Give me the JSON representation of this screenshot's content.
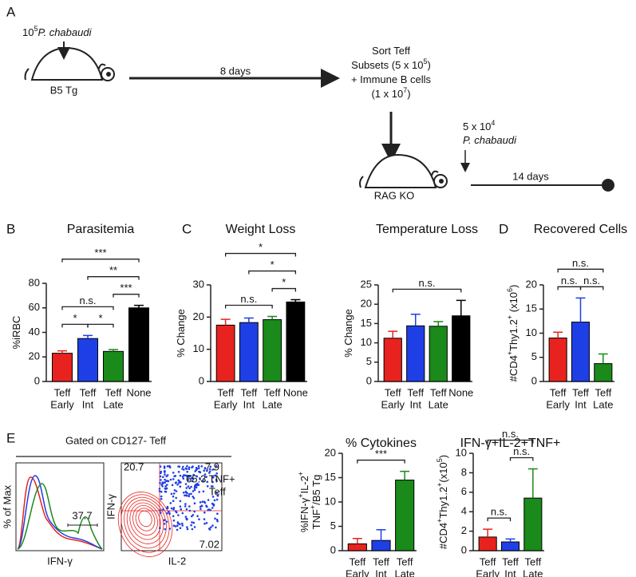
{
  "schematic": {
    "panel_label": "A",
    "dose": [
      "10",
      {
        "sup": "5"
      },
      {
        "em": "P. chabaudi"
      }
    ],
    "donor": "B5 Tg",
    "interval": "8 days",
    "sort": [
      [
        "Sort Teff"
      ],
      [
        "Subsets (5 x 10",
        {
          "sup": "5"
        },
        ")"
      ],
      [
        "+ Immune B cells"
      ],
      [
        "(1 x 10",
        {
          "sup": "7"
        },
        ")"
      ]
    ],
    "recipient": "RAG KO",
    "challenge": [
      [
        "5 x 10",
        {
          "sup": "4"
        }
      ],
      [
        {
          "em": "P. chabaudi"
        }
      ]
    ],
    "duration": "14 days"
  },
  "flow": {
    "panel_label": "E",
    "gate": "Gated on CD127- Teff",
    "hist_ylabel": "% of Max",
    "hist_xlabel": "IFN-γ",
    "hist_gate": "37.7",
    "dot_ylabel": "IFN-γ",
    "dot_xlabel": "IL-2",
    "quadrants": [
      "20.7",
      "7.9",
      "7.02"
    ],
    "tnf": [
      "65.3 TNF+",
      "Teff"
    ]
  },
  "chart_data": [
    {
      "type": "bar",
      "panel_label": "B",
      "title": "Parasitemia",
      "ylabel": [
        [
          "%iRBC"
        ]
      ],
      "categories": [
        [
          "Teff",
          "Early"
        ],
        [
          "Teff",
          "Int"
        ],
        [
          "Teff",
          "Late"
        ],
        [
          "None"
        ]
      ],
      "values": [
        23,
        35,
        24.5,
        60
      ],
      "errors": [
        2,
        2.5,
        1.5,
        2
      ],
      "colors": [
        "#e8231f",
        "#1f3fe6",
        "#1a8a1a",
        "#000000"
      ],
      "ylim": [
        0,
        80
      ],
      "yticks": [
        0,
        20,
        40,
        60,
        80
      ],
      "brackets": [
        {
          "from": 0,
          "to": 1,
          "label": "*"
        },
        {
          "from": 1,
          "to": 2,
          "label": "*"
        },
        {
          "from": 0,
          "to": 2,
          "label": "n.s."
        },
        {
          "from": 2,
          "to": 3,
          "label": "***"
        },
        {
          "from": 1,
          "to": 3,
          "label": "**"
        },
        {
          "from": 0,
          "to": 3,
          "label": "***"
        }
      ]
    },
    {
      "type": "bar",
      "panel_label": "C",
      "title": "Weight Loss",
      "ylabel": [
        [
          "% Change"
        ]
      ],
      "categories": [
        [
          "Teff",
          "Early"
        ],
        [
          "Teff",
          "Int"
        ],
        [
          "Teff",
          "Late"
        ],
        [
          "None"
        ]
      ],
      "values": [
        17.5,
        18.3,
        19.2,
        24.7
      ],
      "errors": [
        1.8,
        1.4,
        1,
        0.7
      ],
      "colors": [
        "#e8231f",
        "#1f3fe6",
        "#1a8a1a",
        "#000000"
      ],
      "ylim": [
        0,
        30
      ],
      "yticks": [
        0,
        10,
        20,
        30
      ],
      "brackets": [
        {
          "from": 0,
          "to": 2,
          "label": "n.s."
        },
        {
          "from": 2,
          "to": 3,
          "label": "*"
        },
        {
          "from": 1,
          "to": 3,
          "label": "*"
        },
        {
          "from": 0,
          "to": 3,
          "label": "*"
        }
      ]
    },
    {
      "type": "bar",
      "title": "Temperature Loss",
      "ylabel": [
        [
          "% Change"
        ]
      ],
      "categories": [
        [
          "Teff",
          "Early"
        ],
        [
          "Teff",
          "Int"
        ],
        [
          "Teff",
          "Late"
        ],
        [
          "None"
        ]
      ],
      "values": [
        11.2,
        14.4,
        14.3,
        17
      ],
      "errors": [
        1.8,
        3,
        1.2,
        4
      ],
      "colors": [
        "#e8231f",
        "#1f3fe6",
        "#1a8a1a",
        "#000000"
      ],
      "ylim": [
        0,
        25
      ],
      "yticks": [
        0,
        5,
        10,
        15,
        20,
        25
      ],
      "brackets": [
        {
          "from": 0,
          "to": 3,
          "label": "n.s."
        }
      ]
    },
    {
      "type": "bar",
      "panel_label": "D",
      "title": "Recovered Cells",
      "ylabel": [
        [
          "#CD4",
          {
            "sup": "+"
          },
          "Thy1.2",
          {
            "sup": "+"
          },
          " (x10",
          {
            "sup": "6"
          },
          ")"
        ]
      ],
      "categories": [
        [
          "Teff",
          "Early"
        ],
        [
          "Teff",
          "Int"
        ],
        [
          "Teff",
          "Late"
        ]
      ],
      "values": [
        9,
        12.3,
        3.7
      ],
      "errors": [
        1.2,
        5,
        2
      ],
      "colors": [
        "#e8231f",
        "#1f3fe6",
        "#1a8a1a"
      ],
      "ylim": [
        0,
        20
      ],
      "yticks": [
        0,
        5,
        10,
        15,
        20
      ],
      "brackets": [
        {
          "from": 0,
          "to": 1,
          "label": "n.s."
        },
        {
          "from": 1,
          "to": 2,
          "label": "n.s."
        },
        {
          "from": 0,
          "to": 2,
          "label": "n.s."
        }
      ]
    },
    {
      "type": "bar",
      "title": "% Cytokines",
      "ylabel": [
        [
          "%IFN-γ",
          {
            "sup": "+"
          },
          "IL-2",
          {
            "sup": "+"
          }
        ],
        [
          "TNF",
          {
            "sup": "+"
          },
          "/B5 Tg"
        ]
      ],
      "categories": [
        [
          "Teff",
          "Early"
        ],
        [
          "Teff",
          "Int"
        ],
        [
          "Teff",
          "Late"
        ]
      ],
      "values": [
        1.4,
        2.1,
        14.5
      ],
      "errors": [
        1.1,
        2.2,
        1.8
      ],
      "colors": [
        "#e8231f",
        "#1f3fe6",
        "#1a8a1a"
      ],
      "ylim": [
        0,
        20
      ],
      "yticks": [
        0,
        5,
        10,
        15,
        20
      ],
      "brackets": [
        {
          "from": 0,
          "to": 2,
          "label": "***"
        }
      ]
    },
    {
      "type": "bar",
      "title": "IFN-γ+IL-2+TNF+",
      "ylabel": [
        [
          "#CD4",
          {
            "sup": "+"
          },
          "Thy1.2",
          {
            "sup": "+"
          },
          "(x10",
          {
            "sup": "5"
          },
          ")"
        ]
      ],
      "categories": [
        [
          "Teff",
          "Early"
        ],
        [
          "Teff",
          "Int"
        ],
        [
          "Teff",
          "Late"
        ]
      ],
      "values": [
        1.4,
        0.9,
        5.4
      ],
      "errors": [
        0.8,
        0.3,
        3
      ],
      "colors": [
        "#e8231f",
        "#1f3fe6",
        "#1a8a1a"
      ],
      "ylim": [
        0,
        10
      ],
      "yticks": [
        0,
        2,
        4,
        6,
        8,
        10
      ],
      "brackets": [
        {
          "from": 0,
          "to": 1,
          "label": "n.s."
        },
        {
          "from": 1,
          "to": 2,
          "label": "n.s."
        },
        {
          "from": 0,
          "to": 2,
          "label": "n.s."
        }
      ]
    }
  ]
}
